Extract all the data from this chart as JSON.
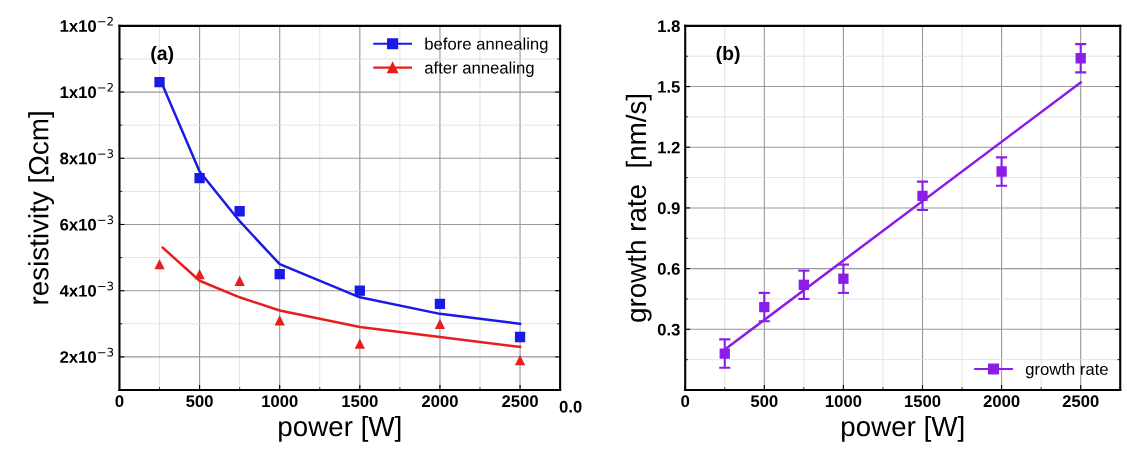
{
  "chart_data": [
    {
      "type": "scatter",
      "xlabel": "power [W]",
      "ylabel": "resistivity [Ωcm]",
      "annotations": [
        "(a)"
      ],
      "xlim": [
        0,
        2750
      ],
      "xticks": [
        0,
        500,
        1000,
        1500,
        2000,
        2500
      ],
      "ylim": [
        0.001,
        0.012
      ],
      "yticks": [
        {
          "value": 0.002,
          "label": "2x10$^{−3}$"
        },
        {
          "value": 0.004,
          "label": "4x10$^{−3}$"
        },
        {
          "value": 0.006,
          "label": "6x10$^{−3}$"
        },
        {
          "value": 0.008,
          "label": "8x10$^{−3}$"
        },
        {
          "value": 0.01,
          "label": "1x10$^{−2}$"
        },
        {
          "value": 0.012,
          "label": "1x10$^{−2}$"
        }
      ],
      "grid": true,
      "legend": "top right",
      "series": [
        {
          "name": "before annealing",
          "color": "#1a1ae6",
          "marker": "square",
          "x": [
            250,
            500,
            750,
            1000,
            1500,
            2000,
            2500
          ],
          "values": [
            0.0103,
            0.0074,
            0.0064,
            0.0045,
            0.004,
            0.0036,
            0.0026
          ]
        },
        {
          "name": "after annealing",
          "color": "#e81e1e",
          "marker": "triangle",
          "x": [
            250,
            500,
            750,
            1000,
            1500,
            2000,
            2500
          ],
          "values": [
            0.0048,
            0.0045,
            0.0043,
            0.0031,
            0.0024,
            0.003,
            0.0019
          ]
        },
        {
          "type": "line",
          "color": "#1a1ae6",
          "x": [
            270,
            500,
            750,
            1000,
            1500,
            2000,
            2500
          ],
          "values": [
            0.0102,
            0.0076,
            0.0061,
            0.0048,
            0.0038,
            0.0033,
            0.003
          ]
        },
        {
          "type": "line",
          "color": "#e81e1e",
          "x": [
            270,
            500,
            750,
            1000,
            1500,
            2000,
            2500
          ],
          "values": [
            0.0053,
            0.0043,
            0.0038,
            0.0034,
            0.0029,
            0.0026,
            0.0023
          ]
        }
      ]
    },
    {
      "type": "scatter",
      "xlabel": "power [W]",
      "ylabel": "growth rate  [nm/s]",
      "annotations": [
        "(b)",
        "0.0"
      ],
      "xlim": [
        0,
        2750
      ],
      "xticks": [
        0,
        500,
        1000,
        1500,
        2000,
        2500
      ],
      "ylim": [
        0,
        1.8
      ],
      "yticks": [
        0.3,
        0.6,
        0.9,
        1.2,
        1.5,
        1.8
      ],
      "grid": true,
      "legend": "bottom right",
      "series": [
        {
          "name": "growth rate",
          "color": "#8a1ee6",
          "marker": "square",
          "x": [
            250,
            500,
            750,
            1000,
            1500,
            2000,
            2500
          ],
          "values": [
            0.18,
            0.41,
            0.52,
            0.55,
            0.96,
            1.08,
            1.64
          ],
          "errors": [
            0.07,
            0.07,
            0.07,
            0.07,
            0.07,
            0.07,
            0.07
          ]
        },
        {
          "type": "line",
          "color": "#8a1ee6",
          "x": [
            250,
            2500
          ],
          "values": [
            0.2,
            1.52
          ]
        }
      ]
    }
  ]
}
